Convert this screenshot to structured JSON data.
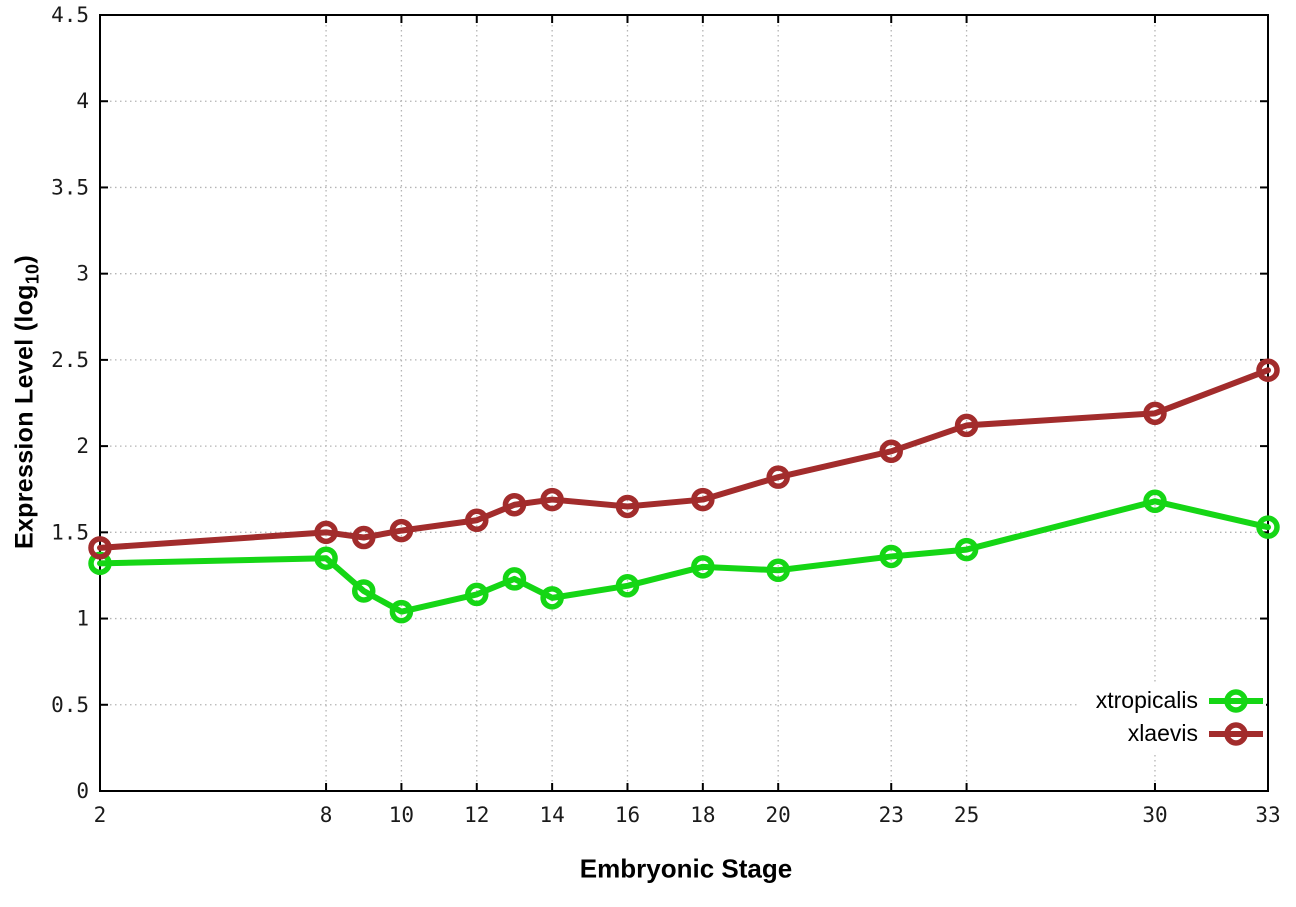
{
  "style": {
    "background": "#ffffff",
    "border_color": "#000000",
    "grid_color": "#b4b4b4",
    "tick_label_color": "#1a1a1a",
    "text_color": "#000000"
  },
  "chart_data": {
    "type": "line",
    "title": "",
    "xlabel": "Embryonic Stage",
    "ylabel": {
      "prefix": "Expression Level (log",
      "sub": "10",
      "suffix": ")"
    },
    "xlim": [
      2,
      33
    ],
    "ylim": [
      0,
      4.5
    ],
    "grid": true,
    "legend_position": "inside bottom-right",
    "x_tick_values": [
      2,
      8,
      10,
      12,
      14,
      16,
      18,
      20,
      23,
      25,
      30,
      33
    ],
    "x_tick_labels": [
      "2",
      "8",
      "10",
      "12",
      "14",
      "16",
      "18",
      "20",
      "23",
      "25",
      "30",
      "33"
    ],
    "y_tick_values": [
      0,
      0.5,
      1,
      1.5,
      2,
      2.5,
      3,
      3.5,
      4,
      4.5
    ],
    "y_tick_labels": [
      "0",
      "0.5",
      "1",
      "1.5",
      "2",
      "2.5",
      "3",
      "3.5",
      "4",
      "4.5"
    ],
    "x": [
      2,
      8,
      9,
      10,
      12,
      13,
      14,
      16,
      18,
      20,
      23,
      25,
      30,
      33
    ],
    "series": [
      {
        "name": "xtropicalis",
        "color": "#15d615",
        "values": [
          1.32,
          1.35,
          1.16,
          1.04,
          1.14,
          1.23,
          1.12,
          1.19,
          1.3,
          1.28,
          1.36,
          1.4,
          1.68,
          1.53
        ]
      },
      {
        "name": "xlaevis",
        "color": "#a22c2c",
        "values": [
          1.41,
          1.5,
          1.47,
          1.51,
          1.57,
          1.66,
          1.69,
          1.65,
          1.69,
          1.82,
          1.97,
          2.12,
          2.19,
          2.44
        ]
      }
    ]
  }
}
